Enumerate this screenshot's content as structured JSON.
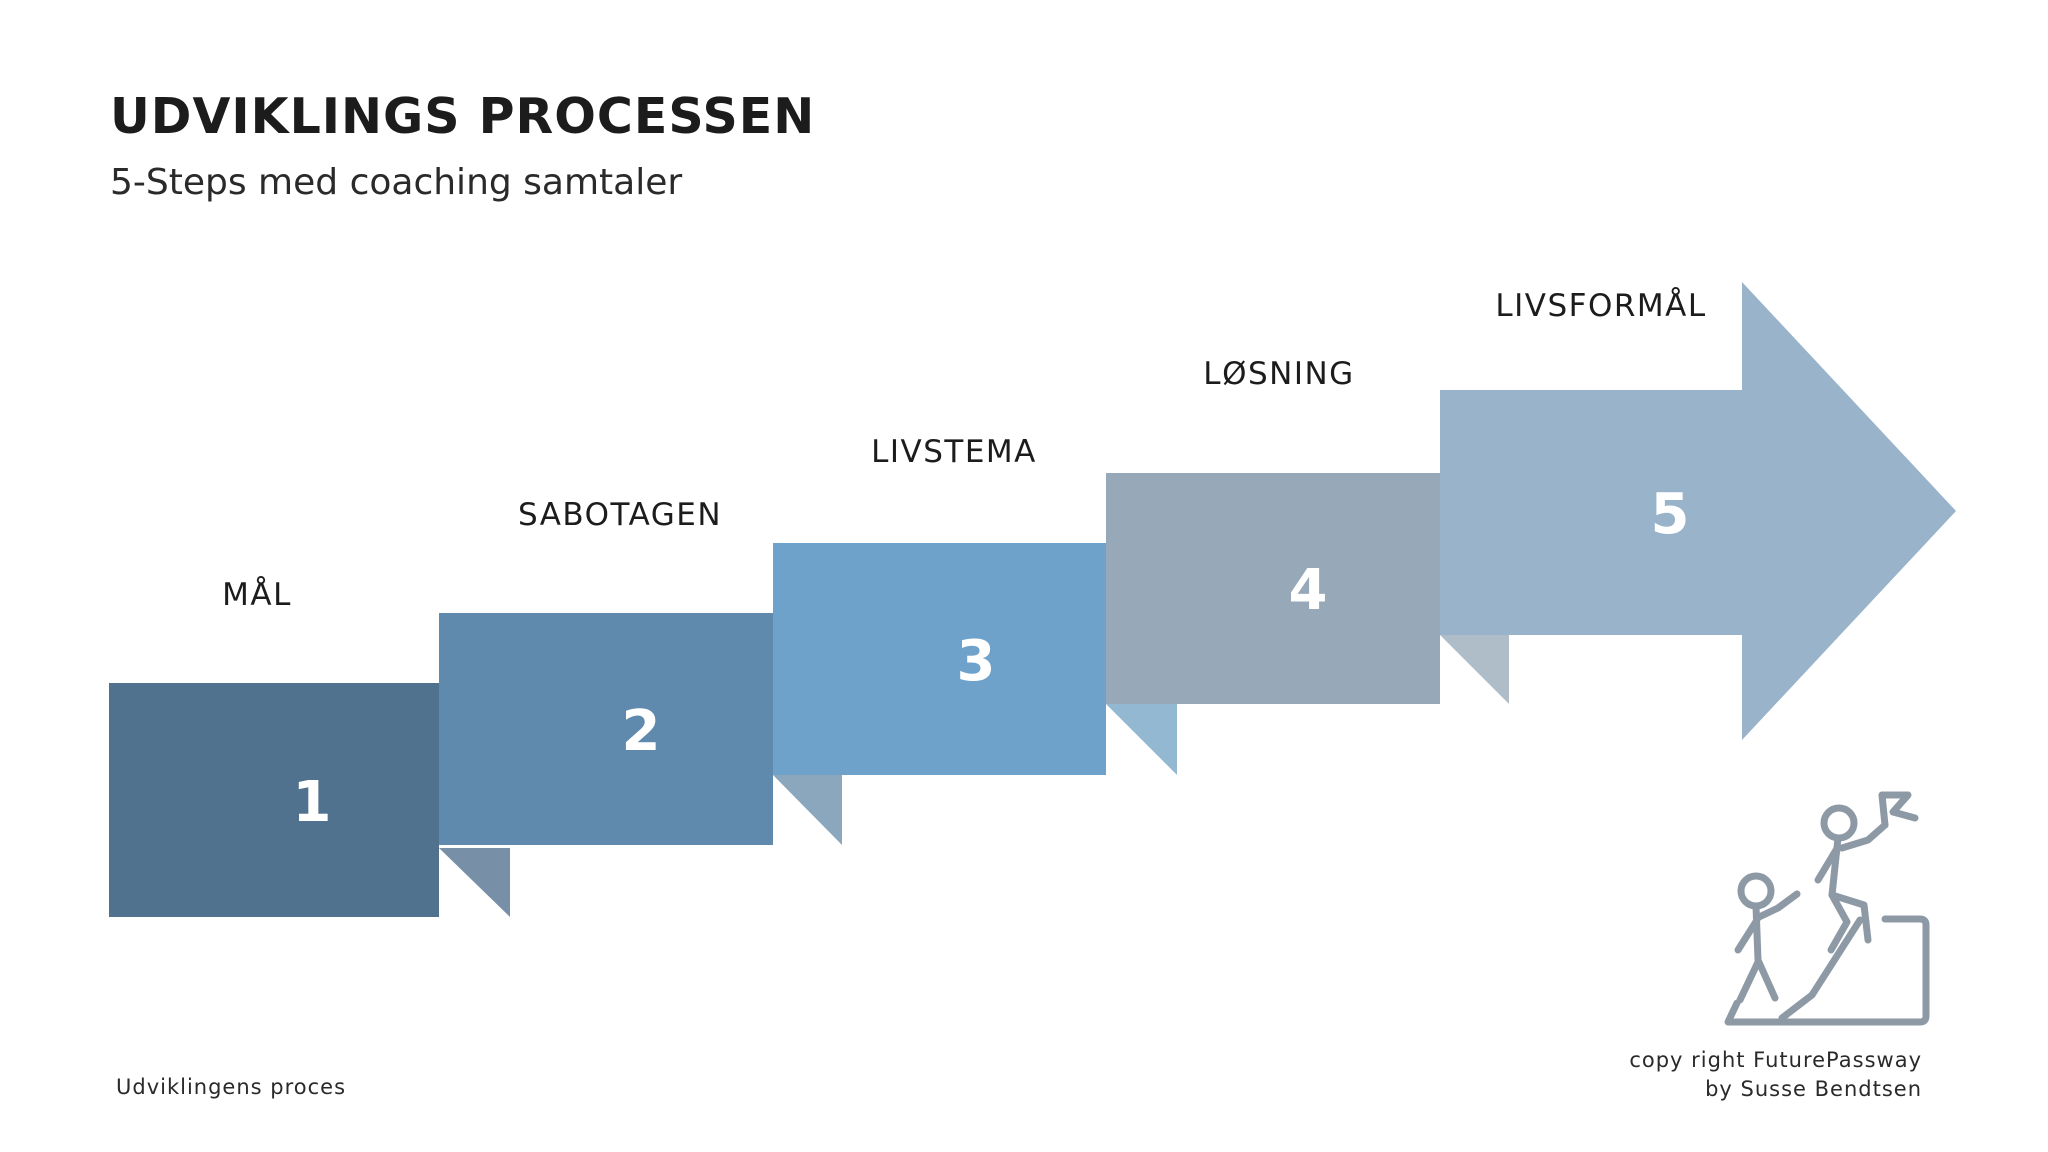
{
  "header": {
    "title": "UDVIKLINGS PROCESSEN",
    "subtitle": "5-Steps med coaching samtaler"
  },
  "steps": [
    {
      "number": "1",
      "label": "MÅL",
      "color": "#51728f",
      "fold_color": "#7790a8"
    },
    {
      "number": "2",
      "label": "SABOTAGEN",
      "color": "#5f8aad",
      "fold_color": "#8aa7bd"
    },
    {
      "number": "3",
      "label": "LIVSTEMA",
      "color": "#6fa2cb",
      "fold_color": "#92b8d2"
    },
    {
      "number": "4",
      "label": "LØSNING",
      "color": "#97a8b8",
      "fold_color": "#aebdc7"
    },
    {
      "number": "5",
      "label": "LIVSFORMÅL",
      "color": "#98b3ca"
    }
  ],
  "icon": {
    "name": "climbing-team-icon",
    "color": "#8d9aa6"
  },
  "footer": {
    "left_text": "Udviklingens proces",
    "copyright_line1": "copy right FuturePassway",
    "copyright_line2": "by Susse Bendtsen"
  }
}
